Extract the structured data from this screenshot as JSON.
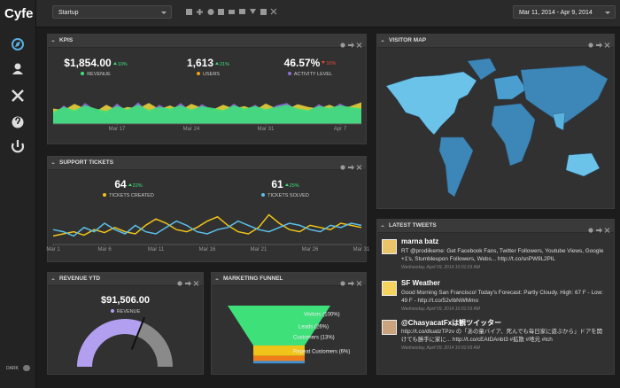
{
  "header": {
    "logo": "Cyfe",
    "dashboard": "Startup",
    "date_range": "Mar 11, 2014 - Apr 9, 2014"
  },
  "sidebar": {
    "theme_toggle": "DARK"
  },
  "kpis": {
    "title": "KPIS",
    "metrics": [
      {
        "value": "$1,854.00",
        "change": "10%",
        "direction": "up",
        "label": "REVENUE",
        "color": "#3ee07a"
      },
      {
        "value": "1,613",
        "change": "21%",
        "direction": "up",
        "label": "USERS",
        "color": "#f39c12"
      },
      {
        "value": "46.57%",
        "change": "10%",
        "direction": "down",
        "label": "ACTIVITY LEVEL",
        "color": "#8a6fd6"
      }
    ],
    "chart": {
      "type": "area",
      "categories": [
        null,
        null,
        null,
        null,
        null,
        null,
        "Mar 17",
        null,
        null,
        null,
        null,
        null,
        null,
        "Mar 24",
        null,
        null,
        null,
        null,
        null,
        null,
        "Mar 31",
        null,
        null,
        null,
        null,
        null,
        null,
        "Apr 7",
        null,
        null
      ],
      "ylim": [
        0,
        100
      ],
      "series": [
        {
          "color": "#e8d23a",
          "values": [
            50,
            45,
            65,
            50,
            40,
            62,
            45,
            55,
            50,
            68,
            48,
            60,
            45,
            65,
            52,
            46,
            62,
            50,
            58,
            45,
            66,
            50,
            48,
            64,
            55,
            50,
            62,
            48,
            58,
            70
          ]
        },
        {
          "color": "#8a6fd6",
          "values": [
            30,
            60,
            35,
            68,
            45,
            35,
            66,
            40,
            70,
            38,
            62,
            42,
            68,
            40,
            64,
            45,
            38,
            66,
            42,
            62,
            40,
            60,
            68,
            44,
            40,
            64,
            46,
            66,
            48,
            45
          ]
        },
        {
          "color": "#3ee07a",
          "values": [
            40,
            55,
            45,
            60,
            50,
            42,
            58,
            48,
            62,
            45,
            55,
            50,
            60,
            47,
            57,
            52,
            45,
            60,
            50,
            58,
            48,
            55,
            62,
            50,
            45,
            58,
            52,
            60,
            55,
            50
          ]
        }
      ]
    }
  },
  "support_tickets": {
    "title": "SUPPORT TICKETS",
    "metrics": [
      {
        "value": "64",
        "change": "22%",
        "direction": "up",
        "label": "TICKETS CREATED",
        "color": "#f0c419"
      },
      {
        "value": "61",
        "change": "25%",
        "direction": "up",
        "label": "TICKETS SOLVED",
        "color": "#5bc0eb"
      }
    ],
    "chart": {
      "type": "line",
      "categories": [
        "Mar 1",
        null,
        null,
        null,
        null,
        "Mar 6",
        null,
        null,
        null,
        null,
        "Mar 11",
        null,
        null,
        null,
        null,
        "Mar 16",
        null,
        null,
        null,
        null,
        "Mar 21",
        null,
        null,
        null,
        null,
        "Mar 26",
        null,
        null,
        null,
        null,
        "Mar 31"
      ],
      "ylim": [
        0,
        100
      ],
      "series": [
        {
          "color": "#f0c419",
          "values": [
            20,
            25,
            30,
            22,
            35,
            28,
            40,
            30,
            25,
            45,
            60,
            50,
            35,
            30,
            40,
            55,
            65,
            45,
            30,
            25,
            40,
            70,
            50,
            35,
            30,
            45,
            40,
            35,
            50,
            45,
            40
          ]
        },
        {
          "color": "#5bc0eb",
          "values": [
            35,
            30,
            20,
            40,
            30,
            50,
            35,
            25,
            45,
            30,
            25,
            40,
            55,
            45,
            30,
            25,
            35,
            40,
            55,
            45,
            35,
            30,
            40,
            50,
            45,
            35,
            30,
            45,
            40,
            50,
            45
          ]
        }
      ]
    }
  },
  "revenue_ytd": {
    "title": "REVENUE YTD",
    "value": "$91,506.00",
    "label": "REVENUE",
    "gauge": {
      "type": "gauge",
      "value": 62,
      "ylim": [
        0,
        100
      ],
      "color": "#b39ff0"
    }
  },
  "marketing_funnel": {
    "title": "MARKETING FUNNEL",
    "chart": {
      "type": "funnel",
      "values": [
        100,
        26,
        13,
        6
      ],
      "value_labels": [
        "Visitors (100%)",
        "Leads (26%)",
        "Customers (13%)",
        "Repeat Customers (6%)"
      ],
      "colors": [
        "#3ee07a",
        "#f0c419",
        "#f07c1a",
        "#3a8fd6"
      ]
    }
  },
  "visitor_map": {
    "title": "VISITOR MAP"
  },
  "latest_tweets": {
    "title": "LATEST TWEETS",
    "tweets": [
      {
        "user": "marna batz",
        "text": "RT @prodiikeme: Get Facebook Fans, Twitter Followers, Youtube Views, Google +1's, Stumbleupon Followers, Webs... http://t.co/snPW9L2PlL",
        "time": "Wednesday, April 09, 2014 10:01:03 AM"
      },
      {
        "user": "SF Weather",
        "text": "Good Morning San Francisco! Today's Forecast: Partly Cloudy. High: 67 F - Low: 49 F - http://t.co/52vIbNWMmo",
        "time": "Wednesday, April 09, 2014 10:01:03 AM"
      },
      {
        "user": "@ChasyacatFxは観ツイッター",
        "text": "http://t.co/dtuatzTPzv の「あの童バイア、死んでも毎日家に遊ぶから」ドアを開けても勝手に家に... http://t.co/cEAtDAnbt3 #拡散 #地元 #tch",
        "time": "Wednesday, April 09, 2014 10:01:03 AM"
      }
    ]
  }
}
